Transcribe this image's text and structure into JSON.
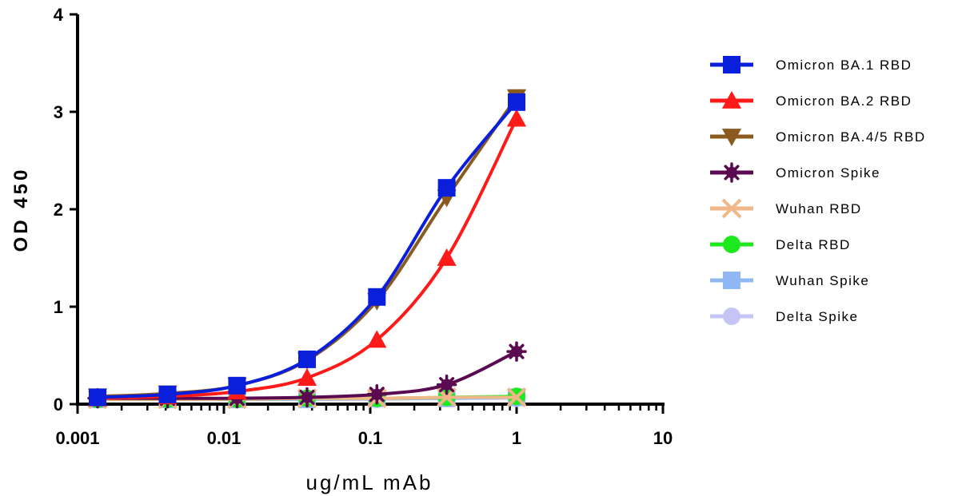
{
  "chart_data": {
    "type": "line",
    "title": "",
    "xlabel": "ug/mL mAb",
    "ylabel": "OD 450",
    "xscale": "log",
    "xlim": [
      0.001,
      10
    ],
    "ylim": [
      0,
      4
    ],
    "x_ticks": [
      "0.001",
      "0.01",
      "0.1",
      "1",
      "10"
    ],
    "y_ticks": [
      "0",
      "1",
      "2",
      "3",
      "4"
    ],
    "grid": false,
    "legend_position": "right",
    "x": [
      0.00137,
      0.00412,
      0.0123,
      0.037,
      0.111,
      0.333,
      1.0
    ],
    "series": [
      {
        "name": "Omicron BA.1 RBD",
        "color": "#0a1fdc",
        "marker": "square",
        "values": [
          0.07,
          0.1,
          0.19,
          0.46,
          1.1,
          2.22,
          3.1
        ]
      },
      {
        "name": "Omicron BA.2 RBD",
        "color": "#ff1a1a",
        "marker": "triangle-up",
        "values": [
          0.06,
          0.08,
          0.13,
          0.27,
          0.66,
          1.5,
          2.93
        ]
      },
      {
        "name": "Omicron BA.4/5 RBD",
        "color": "#8b5a1e",
        "marker": "triangle-down",
        "values": [
          0.08,
          0.11,
          0.19,
          0.45,
          1.06,
          2.12,
          3.15
        ]
      },
      {
        "name": "Omicron Spike",
        "color": "#5a0a50",
        "marker": "star",
        "values": [
          0.06,
          0.06,
          0.06,
          0.07,
          0.1,
          0.2,
          0.54
        ]
      },
      {
        "name": "Wuhan RBD",
        "color": "#f0b888",
        "marker": "x",
        "values": [
          0.05,
          0.05,
          0.05,
          0.06,
          0.06,
          0.07,
          0.07
        ]
      },
      {
        "name": "Delta RBD",
        "color": "#1ee81e",
        "marker": "circle",
        "values": [
          0.05,
          0.05,
          0.05,
          0.06,
          0.06,
          0.07,
          0.08
        ]
      },
      {
        "name": "Wuhan Spike",
        "color": "#8fb8f5",
        "marker": "square",
        "values": [
          0.05,
          0.05,
          0.05,
          0.05,
          0.06,
          0.06,
          0.07
        ]
      },
      {
        "name": "Delta Spike",
        "color": "#c5c5f5",
        "marker": "circle",
        "values": [
          0.05,
          0.05,
          0.05,
          0.05,
          0.05,
          0.06,
          0.06
        ]
      }
    ]
  }
}
